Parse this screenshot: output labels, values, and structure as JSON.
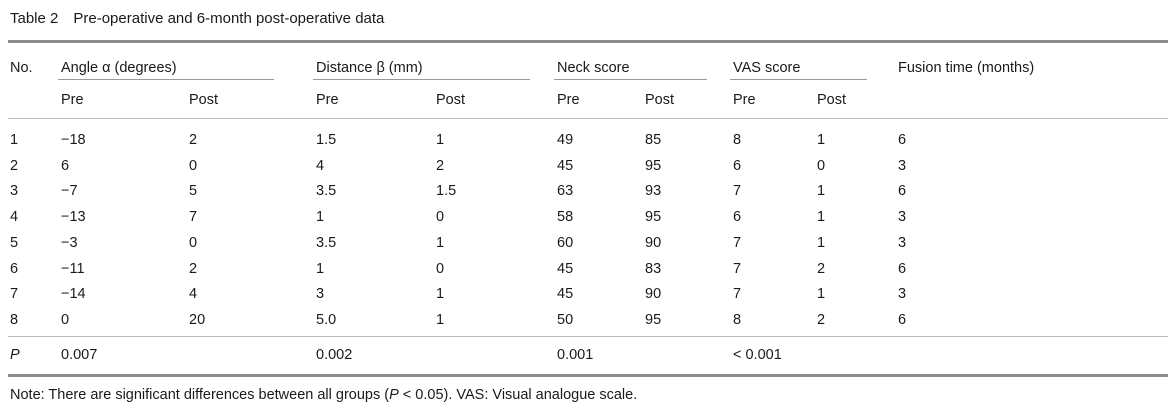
{
  "caption": "Table 2 Pre-operative and 6-month post-operative data",
  "headers": {
    "no": "No.",
    "angle": "Angle α (degrees)",
    "distance": "Distance β (mm)",
    "neck": "Neck score",
    "vas": "VAS score",
    "fusion": "Fusion time (months)"
  },
  "subheaders": {
    "pre": "Pre",
    "post": "Post"
  },
  "rows": [
    [
      "1",
      "−18",
      "2",
      "1.5",
      "1",
      "49",
      "85",
      "8",
      "1",
      "6"
    ],
    [
      "2",
      "6",
      "0",
      "4",
      "2",
      "45",
      "95",
      "6",
      "0",
      "3"
    ],
    [
      "3",
      "−7",
      "5",
      "3.5",
      "1.5",
      "63",
      "93",
      "7",
      "1",
      "6"
    ],
    [
      "4",
      "−13",
      "7",
      "1",
      "0",
      "58",
      "95",
      "6",
      "1",
      "3"
    ],
    [
      "5",
      "−3",
      "0",
      "3.5",
      "1",
      "60",
      "90",
      "7",
      "1",
      "3"
    ],
    [
      "6",
      "−11",
      "2",
      "1",
      "0",
      "45",
      "83",
      "7",
      "2",
      "6"
    ],
    [
      "7",
      "−14",
      "4",
      "3",
      "1",
      "45",
      "90",
      "7",
      "1",
      "3"
    ],
    [
      "8",
      "0",
      "20",
      "5.0",
      "1",
      "50",
      "95",
      "8",
      "2",
      "6"
    ]
  ],
  "p_row": {
    "label": "P",
    "angle": "0.007",
    "distance": "0.002",
    "neck": "0.001",
    "vas": "< 0.001"
  },
  "note": {
    "prefix": "Note: There are significant differences between all groups (",
    "p": "P",
    "suffix": " < 0.05). VAS: Visual analogue scale."
  }
}
